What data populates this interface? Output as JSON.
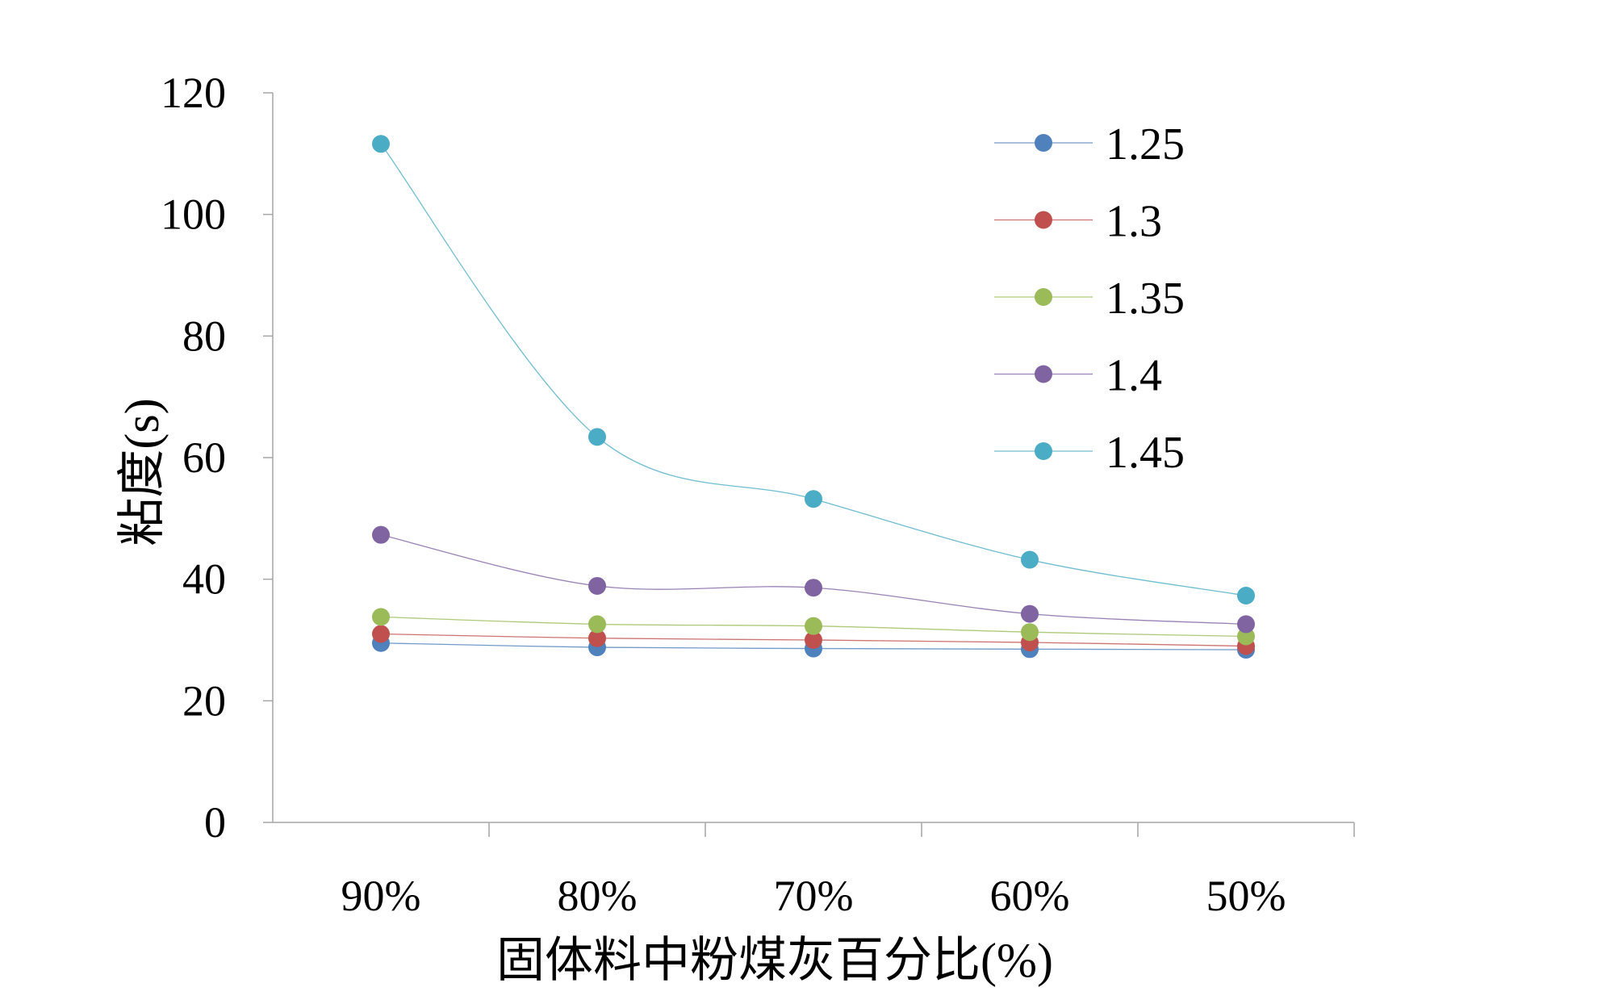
{
  "chart_data": {
    "type": "line",
    "title": "",
    "xlabel": "固体料中粉煤灰百分比(%)",
    "ylabel": "粘度(s)",
    "categories": [
      "90%",
      "80%",
      "70%",
      "60%",
      "50%"
    ],
    "ylim": [
      0,
      120
    ],
    "yticks": [
      "0",
      "20",
      "40",
      "60",
      "80",
      "100",
      "120"
    ],
    "grid": false,
    "legend_position": "top-right",
    "series": [
      {
        "name": "1.25",
        "color": "#4F81BD",
        "values": [
          29.5,
          28.8,
          28.6,
          28.5,
          28.4
        ]
      },
      {
        "name": "1.3",
        "color": "#C0504D",
        "values": [
          31.0,
          30.3,
          30.0,
          29.6,
          29.0
        ]
      },
      {
        "name": "1.35",
        "color": "#9BBB59",
        "values": [
          33.8,
          32.6,
          32.3,
          31.3,
          30.6
        ]
      },
      {
        "name": "1.4",
        "color": "#8064A2",
        "values": [
          47.3,
          38.9,
          38.6,
          34.3,
          32.6
        ]
      },
      {
        "name": "1.45",
        "color": "#4BACC6",
        "values": [
          111.6,
          63.4,
          53.2,
          43.2,
          37.3
        ]
      }
    ]
  }
}
